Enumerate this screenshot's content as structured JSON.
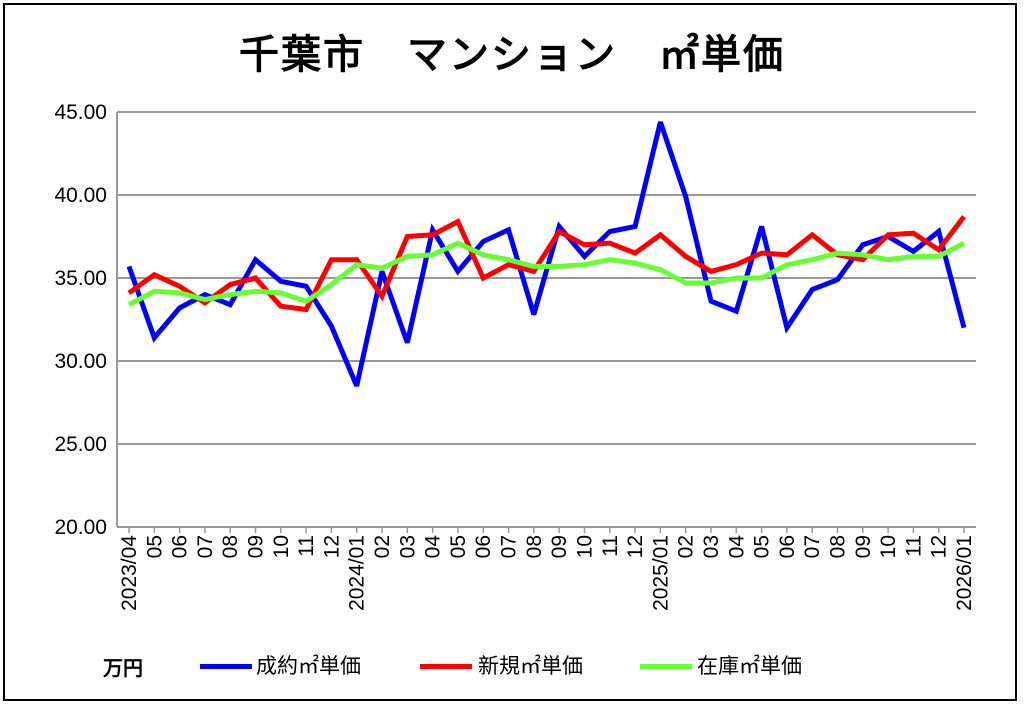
{
  "chart_data": {
    "type": "line",
    "title": "千葉市　マンション　㎡単価",
    "ylabel": "万円",
    "ylim": [
      20,
      45
    ],
    "yticks": [
      "20.00",
      "25.00",
      "30.00",
      "35.00",
      "40.00",
      "45.00"
    ],
    "grid": true,
    "legend_position": "bottom",
    "categories": [
      "2023/04",
      "05",
      "06",
      "07",
      "08",
      "09",
      "10",
      "11",
      "12",
      "2024/01",
      "02",
      "03",
      "04",
      "05",
      "06",
      "07",
      "08",
      "09",
      "10",
      "11",
      "12",
      "2025/01",
      "02",
      "03",
      "04",
      "05",
      "06",
      "07",
      "08",
      "09",
      "10",
      "11",
      "12",
      "2026/01"
    ],
    "series": [
      {
        "name": "成約㎡単価",
        "color": "#0000ff",
        "values": [
          35.7,
          31.4,
          33.2,
          34.0,
          33.4,
          36.1,
          34.8,
          34.5,
          32.1,
          28.5,
          35.4,
          31.1,
          37.9,
          35.4,
          37.2,
          37.9,
          32.8,
          38.1,
          36.3,
          37.8,
          38.1,
          44.4,
          39.9,
          33.6,
          33.0,
          38.1,
          32.0,
          34.3,
          34.9,
          37.0,
          37.5,
          36.6,
          37.8,
          32.0
        ]
      },
      {
        "name": "新規㎡単価",
        "color": "#ff0000",
        "values": [
          34.1,
          35.2,
          34.5,
          33.5,
          34.6,
          35.0,
          33.3,
          33.1,
          36.1,
          36.1,
          33.9,
          37.5,
          37.6,
          38.4,
          35.0,
          35.8,
          35.4,
          37.8,
          37.0,
          37.1,
          36.5,
          37.6,
          36.3,
          35.4,
          35.8,
          36.5,
          36.4,
          37.6,
          36.4,
          36.1,
          37.6,
          37.7,
          36.7,
          38.7
        ]
      },
      {
        "name": "在庫㎡単価",
        "color": "#66ff33",
        "values": [
          33.4,
          34.2,
          34.1,
          33.7,
          34.0,
          34.2,
          34.1,
          33.6,
          34.6,
          35.8,
          35.6,
          36.3,
          36.4,
          37.1,
          36.4,
          36.1,
          35.7,
          35.7,
          35.8,
          36.1,
          35.9,
          35.5,
          34.7,
          34.7,
          35.0,
          35.0,
          35.8,
          36.1,
          36.5,
          36.4,
          36.1,
          36.3,
          36.3,
          37.1
        ]
      }
    ]
  }
}
